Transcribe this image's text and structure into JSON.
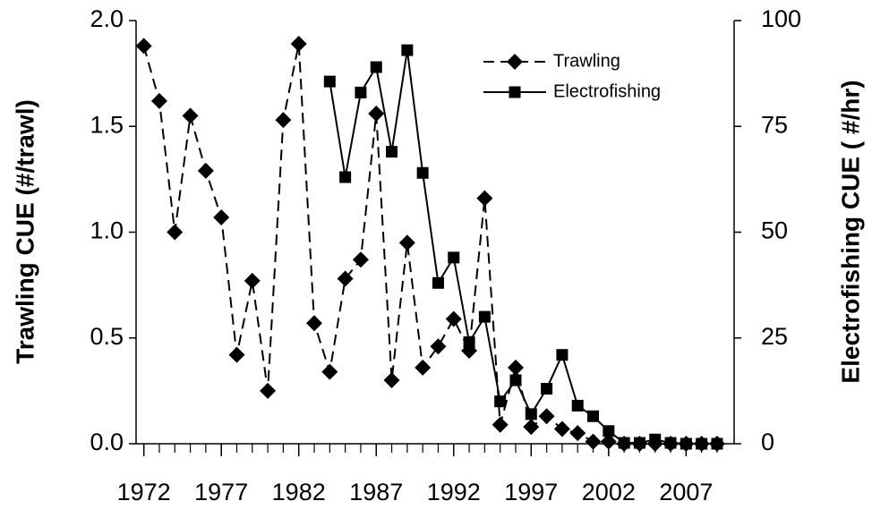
{
  "chart_data": {
    "type": "line",
    "x": [
      1972,
      1973,
      1974,
      1975,
      1976,
      1977,
      1978,
      1979,
      1980,
      1981,
      1982,
      1983,
      1984,
      1985,
      1986,
      1987,
      1988,
      1989,
      1990,
      1991,
      1992,
      1993,
      1994,
      1995,
      1996,
      1997,
      1998,
      1999,
      2000,
      2001,
      2002,
      2003,
      2004,
      2005,
      2006,
      2007,
      2008,
      2009
    ],
    "xlim": [
      1971.5,
      2010.1
    ],
    "xticks": [
      1972,
      1977,
      1982,
      1987,
      1992,
      1997,
      2002,
      2007
    ],
    "ylabel": "Trawling CUE (#/trawl)",
    "y2label": "Electrofishing CUE ( #/hr)",
    "ylim": [
      0,
      2
    ],
    "yticks": [
      {
        "value": 0,
        "label": "0.0"
      },
      {
        "value": 0.5,
        "label": "0.5"
      },
      {
        "value": 1,
        "label": "1.0"
      },
      {
        "value": 1.5,
        "label": "1.5"
      },
      {
        "value": 2,
        "label": "2.0"
      }
    ],
    "y2lim": [
      0,
      100
    ],
    "y2ticks": [
      0,
      25,
      50,
      75,
      100
    ],
    "legend": "upper right",
    "series": [
      {
        "name": "Trawling",
        "color": "#000000",
        "marker": "diamond",
        "linestyle": "dashed",
        "values": [
          1.88,
          1.62,
          1.0,
          1.55,
          1.29,
          1.07,
          0.42,
          0.77,
          0.25,
          1.53,
          1.89,
          0.57,
          0.34,
          0.78,
          0.87,
          1.56,
          0.3,
          0.95,
          0.36,
          0.46,
          0.59,
          0.44,
          1.16,
          0.09,
          0.36,
          0.08,
          0.13,
          0.07,
          0.05,
          0.01,
          0.01,
          0,
          0,
          0,
          0,
          0,
          0,
          0
        ]
      },
      {
        "name": "Electrofishing",
        "color": "#000000",
        "marker": "square",
        "linestyle": "solid",
        "axis": "y2",
        "values": [
          null,
          null,
          null,
          null,
          null,
          null,
          null,
          null,
          null,
          null,
          null,
          null,
          85.6,
          63,
          83,
          89,
          69,
          93,
          64,
          38,
          44,
          24,
          30,
          10,
          15,
          7,
          13,
          21,
          9,
          6.5,
          3,
          0.2,
          0.2,
          1,
          0.2,
          0,
          0,
          0
        ]
      }
    ]
  }
}
